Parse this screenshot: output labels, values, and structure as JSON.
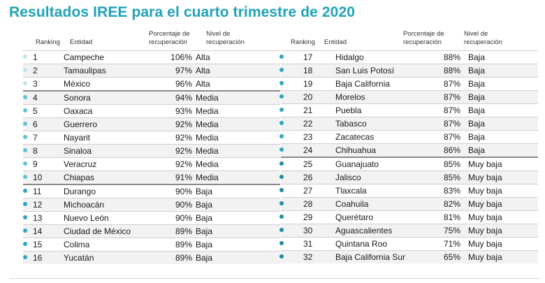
{
  "title": "Resultados IREE para el cuarto trimestre de 2020",
  "headers": {
    "ranking": "Ranking",
    "entidad": "Entidad",
    "porcentaje": "Porcentaje de recuperación",
    "nivel": "Nivel de recuperación"
  },
  "colors": {
    "title": "#1fa3b8",
    "alta": "#bfe3ee",
    "media": "#5fc2d8",
    "baja": "#2ba7c0",
    "muy_baja": "#1b8ea3"
  },
  "left_rows": [
    {
      "rank": "1",
      "entidad": "Campeche",
      "pct": "106%",
      "nivel": "Alta"
    },
    {
      "rank": "2",
      "entidad": "Tamaulipas",
      "pct": "97%",
      "nivel": "Alta"
    },
    {
      "rank": "3",
      "entidad": "México",
      "pct": "96%",
      "nivel": "Alta"
    },
    {
      "rank": "4",
      "entidad": "Sonora",
      "pct": "94%",
      "nivel": "Media"
    },
    {
      "rank": "5",
      "entidad": "Oaxaca",
      "pct": "93%",
      "nivel": "Media"
    },
    {
      "rank": "6",
      "entidad": "Guerrero",
      "pct": "92%",
      "nivel": "Media"
    },
    {
      "rank": "7",
      "entidad": "Nayarit",
      "pct": "92%",
      "nivel": "Media"
    },
    {
      "rank": "8",
      "entidad": "Sinaloa",
      "pct": "92%",
      "nivel": "Media"
    },
    {
      "rank": "9",
      "entidad": "Veracruz",
      "pct": "92%",
      "nivel": "Media"
    },
    {
      "rank": "10",
      "entidad": "Chiapas",
      "pct": "91%",
      "nivel": "Media"
    },
    {
      "rank": "11",
      "entidad": "Durango",
      "pct": "90%",
      "nivel": "Baja"
    },
    {
      "rank": "12",
      "entidad": "Michoacán",
      "pct": "90%",
      "nivel": "Baja"
    },
    {
      "rank": "13",
      "entidad": "Nuevo León",
      "pct": "90%",
      "nivel": "Baja"
    },
    {
      "rank": "14",
      "entidad": "Ciudad de México",
      "pct": "89%",
      "nivel": "Baja"
    },
    {
      "rank": "15",
      "entidad": "Colima",
      "pct": "89%",
      "nivel": "Baja"
    },
    {
      "rank": "16",
      "entidad": "Yucatán",
      "pct": "89%",
      "nivel": "Baja"
    }
  ],
  "right_rows": [
    {
      "rank": "17",
      "entidad": "Hidalgo",
      "pct": "88%",
      "nivel": "Baja"
    },
    {
      "rank": "18",
      "entidad": "San Luis Potosí",
      "pct": "88%",
      "nivel": "Baja"
    },
    {
      "rank": "19",
      "entidad": "Baja California",
      "pct": "87%",
      "nivel": "Baja"
    },
    {
      "rank": "20",
      "entidad": "Morelos",
      "pct": "87%",
      "nivel": "Baja"
    },
    {
      "rank": "21",
      "entidad": "Puebla",
      "pct": "87%",
      "nivel": "Baja"
    },
    {
      "rank": "22",
      "entidad": "Tabasco",
      "pct": "87%",
      "nivel": "Baja"
    },
    {
      "rank": "23",
      "entidad": "Zacatecas",
      "pct": "87%",
      "nivel": "Baja"
    },
    {
      "rank": "24",
      "entidad": "Chihuahua",
      "pct": "86%",
      "nivel": "Baja"
    },
    {
      "rank": "25",
      "entidad": "Guanajuato",
      "pct": "85%",
      "nivel": "Muy baja"
    },
    {
      "rank": "26",
      "entidad": "Jalisco",
      "pct": "85%",
      "nivel": "Muy baja"
    },
    {
      "rank": "27",
      "entidad": "Tlaxcala",
      "pct": "83%",
      "nivel": "Muy baja"
    },
    {
      "rank": "28",
      "entidad": "Coahuila",
      "pct": "82%",
      "nivel": "Muy baja"
    },
    {
      "rank": "29",
      "entidad": "Querétaro",
      "pct": "81%",
      "nivel": "Muy baja"
    },
    {
      "rank": "30",
      "entidad": "Aguascalientes",
      "pct": "75%",
      "nivel": "Muy baja"
    },
    {
      "rank": "31",
      "entidad": "Quintana Roo",
      "pct": "71%",
      "nivel": "Muy baja"
    },
    {
      "rank": "32",
      "entidad": "Baja California Sur",
      "pct": "65%",
      "nivel": "Muy baja"
    }
  ]
}
